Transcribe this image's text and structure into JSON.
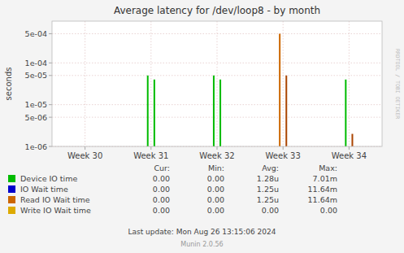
{
  "chart_data": {
    "type": "bar",
    "title": "Average latency for /dev/loop8 - by month",
    "ylabel": "seconds",
    "log": "y",
    "grid": true,
    "xlim": [
      0,
      5
    ],
    "xticks": [
      {
        "value": 0.5,
        "label": "Week 30"
      },
      {
        "value": 1.5,
        "label": "Week 31"
      },
      {
        "value": 2.5,
        "label": "Week 32"
      },
      {
        "value": 3.5,
        "label": "Week 33"
      },
      {
        "value": 4.5,
        "label": "Week 34"
      }
    ],
    "ylim": [
      1e-06,
      0.001
    ],
    "yticks": [
      {
        "value": 1e-06,
        "label": "1e-06"
      },
      {
        "value": 5e-06,
        "label": "5e-06"
      },
      {
        "value": 1e-05,
        "label": "1e-05"
      },
      {
        "value": 5e-05,
        "label": "5e-05"
      },
      {
        "value": 0.0001,
        "label": "1e-04"
      },
      {
        "value": 0.0005,
        "label": "5e-04"
      }
    ],
    "series": [
      {
        "name": "Device IO time",
        "color": "#00bb00",
        "x": [
          1.45,
          1.55,
          2.45,
          2.55,
          4.45
        ],
        "values": [
          5e-05,
          4e-05,
          5e-05,
          4e-05,
          4e-05
        ]
      },
      {
        "name": "IO Wait time",
        "color": "#0000cc",
        "x": [],
        "values": []
      },
      {
        "name": "Read IO Wait time",
        "color": "#cc6600",
        "colors": [
          "#cc6600",
          "#aa4400",
          "#aa4400"
        ],
        "x": [
          3.45,
          3.55,
          4.55
        ],
        "values": [
          0.0005,
          5e-05,
          2e-06
        ]
      },
      {
        "name": "Write IO Wait time",
        "color": "#ddaa00",
        "x": [],
        "values": []
      }
    ],
    "legend_table": {
      "headers": [
        "Cur:",
        "Min:",
        "Avg:",
        "Max:"
      ],
      "rows": [
        [
          "0.00",
          "0.00",
          "1.28u",
          "7.01m"
        ],
        [
          "0.00",
          "0.00",
          "1.25u",
          "11.64m"
        ],
        [
          "0.00",
          "0.00",
          "1.25u",
          "11.64m"
        ],
        [
          "0.00",
          "0.00",
          "0.00",
          "0.00"
        ]
      ]
    },
    "annotations": [
      "Last update: Mon Aug 26 13:15:06 2024",
      "Munin 2.0.56",
      "RRDTOOL / TOBI OETIKER"
    ]
  }
}
